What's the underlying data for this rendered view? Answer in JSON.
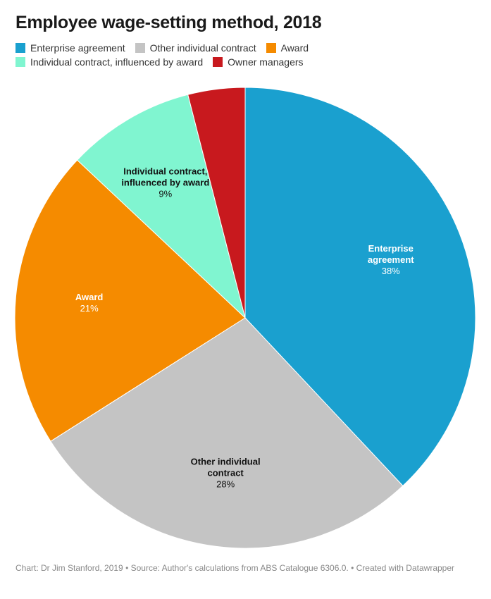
{
  "title": "Employee wage-setting method, 2018",
  "footer": "Chart: Dr Jim Stanford, 2019 • Source: Author's calculations from ABS Catalogue 6306.0. • Created with Datawrapper",
  "legend": [
    {
      "label": "Enterprise agreement",
      "color": "#1aa0cf"
    },
    {
      "label": "Other individual contract",
      "color": "#c4c4c4"
    },
    {
      "label": "Award",
      "color": "#f58b00"
    },
    {
      "label": "Individual contract, influenced by award",
      "color": "#80f5d0"
    },
    {
      "label": "Owner managers",
      "color": "#c8191e"
    }
  ],
  "chart_data": {
    "type": "pie",
    "title": "Employee wage-setting method, 2018",
    "slices": [
      {
        "label": "Enterprise agreement",
        "display": [
          "Enterprise",
          "agreement"
        ],
        "value": 38,
        "value_label": "38%",
        "color": "#1aa0cf",
        "label_color": "#ffffff"
      },
      {
        "label": "Other individual contract",
        "display": [
          "Other individual",
          "contract"
        ],
        "value": 28,
        "value_label": "28%",
        "color": "#c4c4c4",
        "label_color": "#111111"
      },
      {
        "label": "Award",
        "display": [
          "Award"
        ],
        "value": 21,
        "value_label": "21%",
        "color": "#f58b00",
        "label_color": "#ffffff"
      },
      {
        "label": "Individual contract, influenced by award",
        "display": [
          "Individual contract,",
          "influenced by award"
        ],
        "value": 9,
        "value_label": "9%",
        "color": "#80f5d0",
        "label_color": "#111111"
      },
      {
        "label": "Owner managers",
        "display": [],
        "value": 4,
        "value_label": "",
        "color": "#c8191e",
        "label_color": "#ffffff"
      }
    ],
    "legend_position": "top-left"
  }
}
